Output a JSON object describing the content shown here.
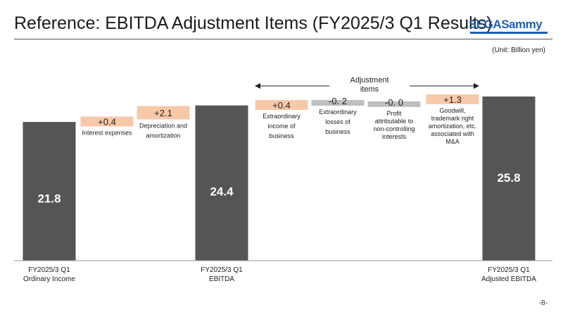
{
  "header": {
    "title": "Reference: EBITDA Adjustment Items (FY2025/3 Q1 Results)",
    "logo_sega": "SEGA",
    "logo_sammy": "Sammy",
    "logo_color": "#1f5fb3"
  },
  "unit": "(Unit: Billion yen)",
  "page_number": "-8-",
  "adjustment_header": [
    "Adjustment",
    "items"
  ],
  "colors": {
    "total_bar": "#555555",
    "positive_adjustment": "#f7c9a9",
    "negative_adjustment": "#bfbfbf",
    "total_label": "#ffffff"
  },
  "chart_data": {
    "type": "bar",
    "variant": "waterfall",
    "title": "",
    "ylim": [
      0,
      26.5
    ],
    "bars": [
      {
        "kind": "total",
        "value": 21.8,
        "value_label": "21.8",
        "label_lines": [
          "FY2025/3 Q1",
          "Ordinary Income"
        ]
      },
      {
        "kind": "increase",
        "value": 0.4,
        "value_label": "+0.4",
        "label_lines": [
          "Interest expenses"
        ]
      },
      {
        "kind": "increase",
        "value": 2.1,
        "value_label": "+2.1",
        "label_lines": [
          "Depreciation and",
          "amortization"
        ]
      },
      {
        "kind": "total",
        "value": 24.4,
        "value_label": "24.4",
        "label_lines": [
          "FY2025/3 Q1",
          "EBITDA"
        ]
      },
      {
        "kind": "increase",
        "value": 0.4,
        "value_label": "+0.4",
        "label_lines": [
          "Extraordinary",
          "income of",
          "business"
        ]
      },
      {
        "kind": "decrease",
        "value": -0.2,
        "value_label": "-0. 2",
        "label_lines": [
          "Extraordinary",
          "losses of",
          "business"
        ]
      },
      {
        "kind": "decrease",
        "value": -0.0,
        "value_label": "-0. 0",
        "label_lines": [
          "Profit",
          "attributable to",
          "non-controlling",
          "interests"
        ]
      },
      {
        "kind": "increase",
        "value": 1.3,
        "value_label": "+1.3",
        "label_lines": [
          "Goodwill,",
          "trademark right",
          "amortization, etc.",
          "associated with",
          "M&A"
        ]
      },
      {
        "kind": "total",
        "value": 25.8,
        "value_label": "25.8",
        "label_lines": [
          "FY2025/3 Q1",
          "Adjusted EBITDA"
        ]
      }
    ]
  }
}
